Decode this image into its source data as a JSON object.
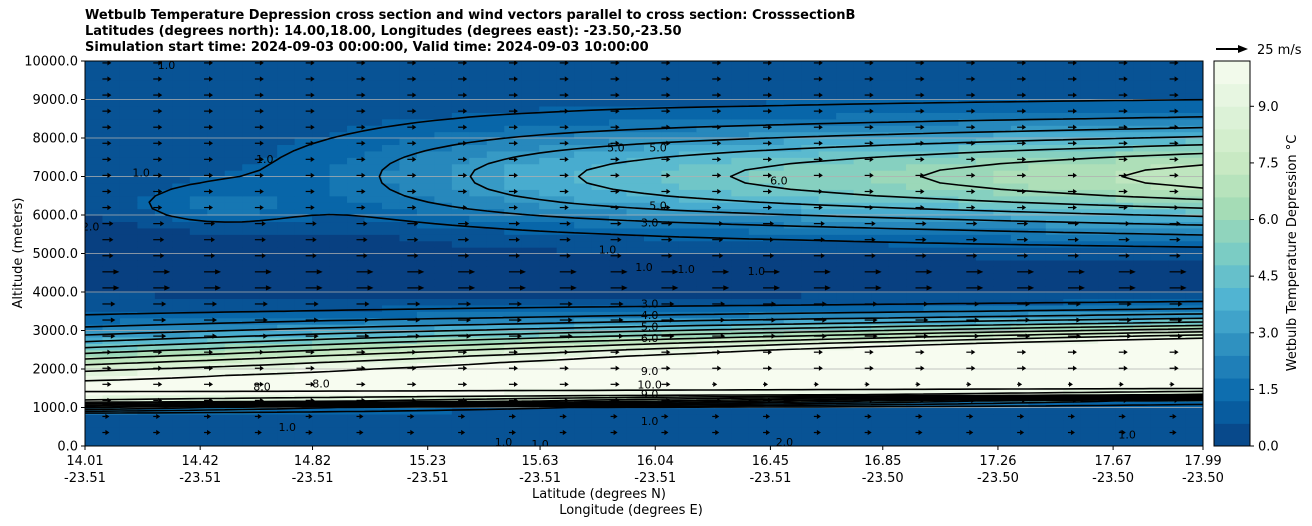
{
  "titles": [
    "Wetbulb Temperature Depression cross section and wind vectors parallel to cross section: CrosssectionB",
    "Latitudes (degrees north): 14.00,18.00, Longitudes (degrees east): -23.50,-23.50",
    "Simulation start time: 2024-09-03 00:00:00, Valid time: 2024-09-03 10:00:00"
  ],
  "chart_data": {
    "type": "heatmap",
    "ylabel": "Altitude (meters)",
    "xlabel_lines": [
      "Latitude (degrees N)",
      "Longitude (degrees E)"
    ],
    "ylim": [
      0,
      10000
    ],
    "y_ticks": [
      "0.0",
      "1000.0",
      "2000.0",
      "3000.0",
      "4000.0",
      "5000.0",
      "6000.0",
      "7000.0",
      "8000.0",
      "9000.0",
      "10000.0"
    ],
    "y_tick_values": [
      0,
      1000,
      2000,
      3000,
      4000,
      5000,
      6000,
      7000,
      8000,
      9000,
      10000
    ],
    "x_ticks": [
      [
        "14.01",
        "-23.51"
      ],
      [
        "14.42",
        "-23.51"
      ],
      [
        "14.82",
        "-23.51"
      ],
      [
        "15.23",
        "-23.51"
      ],
      [
        "15.63",
        "-23.51"
      ],
      [
        "16.04",
        "-23.51"
      ],
      [
        "16.45",
        "-23.51"
      ],
      [
        "16.85",
        "-23.50"
      ],
      [
        "17.26",
        "-23.50"
      ],
      [
        "17.67",
        "-23.50"
      ],
      [
        "17.99",
        "-23.50"
      ]
    ],
    "x_tick_lat_values": [
      14.01,
      14.42,
      14.82,
      15.23,
      15.63,
      16.04,
      16.45,
      16.85,
      17.26,
      17.67,
      17.99
    ],
    "grid": "horizontal",
    "colorbar": {
      "label": "Wetbulb Temperature Depression °C",
      "range": [
        0,
        10.2
      ],
      "ticks": [
        "0.0",
        "1.5",
        "3.0",
        "4.5",
        "6.0",
        "7.5",
        "9.0"
      ],
      "tick_values": [
        0,
        1.5,
        3.0,
        4.5,
        6.0,
        7.5,
        9.0
      ],
      "colors": [
        "#084081",
        "#0868ac",
        "#2b8cbe",
        "#4eb3d3",
        "#7bccc4",
        "#a8ddb5",
        "#ccebc5",
        "#e0f3db",
        "#f7fcf0"
      ]
    },
    "vector_key": {
      "label": "25 m/s",
      "speed": 25
    },
    "contour_labels": [
      {
        "text": "5.0",
        "x": 15.9,
        "y": 7750
      },
      {
        "text": "5.0",
        "x": 16.05,
        "y": 7750
      },
      {
        "text": "6.0",
        "x": 16.48,
        "y": 6900
      },
      {
        "text": "5.0",
        "x": 16.05,
        "y": 6250
      },
      {
        "text": "3.0",
        "x": 16.02,
        "y": 5800
      },
      {
        "text": "1.0",
        "x": 15.87,
        "y": 5100
      },
      {
        "text": "1.0",
        "x": 16.0,
        "y": 4650
      },
      {
        "text": "1.0",
        "x": 16.15,
        "y": 4600
      },
      {
        "text": "1.0",
        "x": 16.4,
        "y": 4550
      },
      {
        "text": "3.0",
        "x": 16.02,
        "y": 3700
      },
      {
        "text": "4.0",
        "x": 16.02,
        "y": 3400
      },
      {
        "text": "5.0",
        "x": 16.02,
        "y": 3100
      },
      {
        "text": "6.0",
        "x": 16.02,
        "y": 2800
      },
      {
        "text": "9.0",
        "x": 16.02,
        "y": 1950
      },
      {
        "text": "8.0",
        "x": 14.85,
        "y": 1620
      },
      {
        "text": "10.0",
        "x": 16.02,
        "y": 1600
      },
      {
        "text": "9.0",
        "x": 16.02,
        "y": 1350
      },
      {
        "text": "8.0",
        "x": 14.64,
        "y": 1550
      },
      {
        "text": "1.0",
        "x": 14.3,
        "y": 9900
      },
      {
        "text": "1.0",
        "x": 14.21,
        "y": 7100
      },
      {
        "text": "1.0",
        "x": 14.65,
        "y": 7450
      },
      {
        "text": "2.0",
        "x": 14.03,
        "y": 5700
      },
      {
        "text": "1.0",
        "x": 14.73,
        "y": 500
      },
      {
        "text": "1.0",
        "x": 16.02,
        "y": 650
      },
      {
        "text": "2.0",
        "x": 16.5,
        "y": 100
      },
      {
        "text": "1.0",
        "x": 17.72,
        "y": 300
      },
      {
        "text": "1.0",
        "x": 15.63,
        "y": 50
      },
      {
        "text": "1.0",
        "x": 15.5,
        "y": 100
      }
    ]
  }
}
